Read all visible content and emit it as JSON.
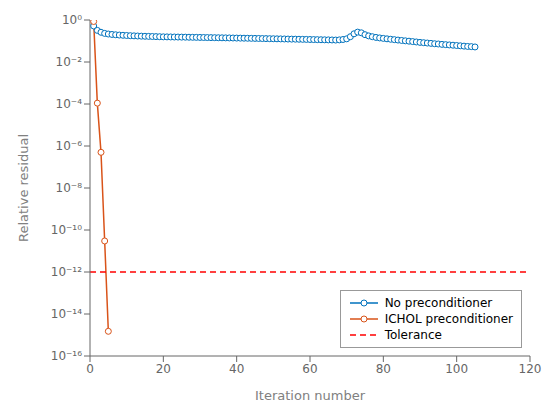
{
  "chart_data": {
    "type": "line",
    "xlabel": "Iteration number",
    "ylabel": "Relative residual",
    "log": "y",
    "grid": false,
    "legend": "lower right",
    "xlim": [
      0,
      120
    ],
    "ylim": [
      1e-16,
      1
    ],
    "xticks": [
      0,
      20,
      40,
      60,
      80,
      100,
      120
    ],
    "yticks": [
      {
        "value": 1,
        "label": "10⁰"
      },
      {
        "value": 0.01,
        "label": "10⁻²"
      },
      {
        "value": 0.0001,
        "label": "10⁻⁴"
      },
      {
        "value": 1e-06,
        "label": "10⁻⁶"
      },
      {
        "value": 1e-08,
        "label": "10⁻⁸"
      },
      {
        "value": 1e-10,
        "label": "10⁻¹⁰"
      },
      {
        "value": 1e-12,
        "label": "10⁻¹²"
      },
      {
        "value": 1e-14,
        "label": "10⁻¹⁴"
      },
      {
        "value": 1e-16,
        "label": "10⁻¹⁶"
      }
    ],
    "series": [
      {
        "name": "No preconditioner",
        "color": "#0072bd",
        "marker": "circle",
        "x": [
          1,
          2,
          3,
          4,
          5,
          6,
          7,
          8,
          9,
          10,
          11,
          12,
          13,
          14,
          15,
          16,
          17,
          18,
          19,
          20,
          21,
          22,
          23,
          24,
          25,
          26,
          27,
          28,
          29,
          30,
          31,
          32,
          33,
          34,
          35,
          36,
          37,
          38,
          39,
          40,
          41,
          42,
          43,
          44,
          45,
          46,
          47,
          48,
          49,
          50,
          51,
          52,
          53,
          54,
          55,
          56,
          57,
          58,
          59,
          60,
          61,
          62,
          63,
          64,
          65,
          66,
          67,
          68,
          69,
          70,
          71,
          72,
          73,
          74,
          75,
          76,
          77,
          78,
          79,
          80,
          81,
          82,
          83,
          84,
          85,
          86,
          87,
          88,
          89,
          90,
          91,
          92,
          93,
          94,
          95,
          96,
          97,
          98,
          99,
          100,
          101,
          102,
          103,
          104,
          105
        ],
        "values": [
          0.52,
          0.32,
          0.26,
          0.23,
          0.215,
          0.205,
          0.198,
          0.192,
          0.187,
          0.183,
          0.179,
          0.176,
          0.173,
          0.17,
          0.168,
          0.166,
          0.164,
          0.162,
          0.16,
          0.158,
          0.157,
          0.156,
          0.155,
          0.154,
          0.153,
          0.152,
          0.151,
          0.15,
          0.149,
          0.148,
          0.147,
          0.146,
          0.145,
          0.144,
          0.143,
          0.142,
          0.141,
          0.14,
          0.139,
          0.138,
          0.137,
          0.136,
          0.135,
          0.134,
          0.133,
          0.132,
          0.131,
          0.13,
          0.129,
          0.128,
          0.127,
          0.126,
          0.125,
          0.124,
          0.123,
          0.122,
          0.121,
          0.12,
          0.119,
          0.118,
          0.117,
          0.116,
          0.115,
          0.114,
          0.113,
          0.112,
          0.111,
          0.113,
          0.118,
          0.127,
          0.16,
          0.22,
          0.265,
          0.245,
          0.2,
          0.175,
          0.16,
          0.148,
          0.14,
          0.133,
          0.127,
          0.121,
          0.116,
          0.111,
          0.106,
          0.102,
          0.098,
          0.094,
          0.09,
          0.086,
          0.083,
          0.08,
          0.077,
          0.074,
          0.072,
          0.069,
          0.067,
          0.065,
          0.063,
          0.061,
          0.059,
          0.057,
          0.055,
          0.054,
          0.052
        ]
      },
      {
        "name": "ICHOL preconditioner",
        "color": "#d95319",
        "marker": "circle",
        "x": [
          1,
          2,
          3,
          4,
          5
        ],
        "values": [
          0.85,
          0.00011,
          5e-07,
          3e-11,
          1.5e-15
        ]
      },
      {
        "name": "Tolerance",
        "type": "hline",
        "color": "#ff0000",
        "line_style": "dashed",
        "values": [
          1e-12
        ]
      }
    ]
  }
}
